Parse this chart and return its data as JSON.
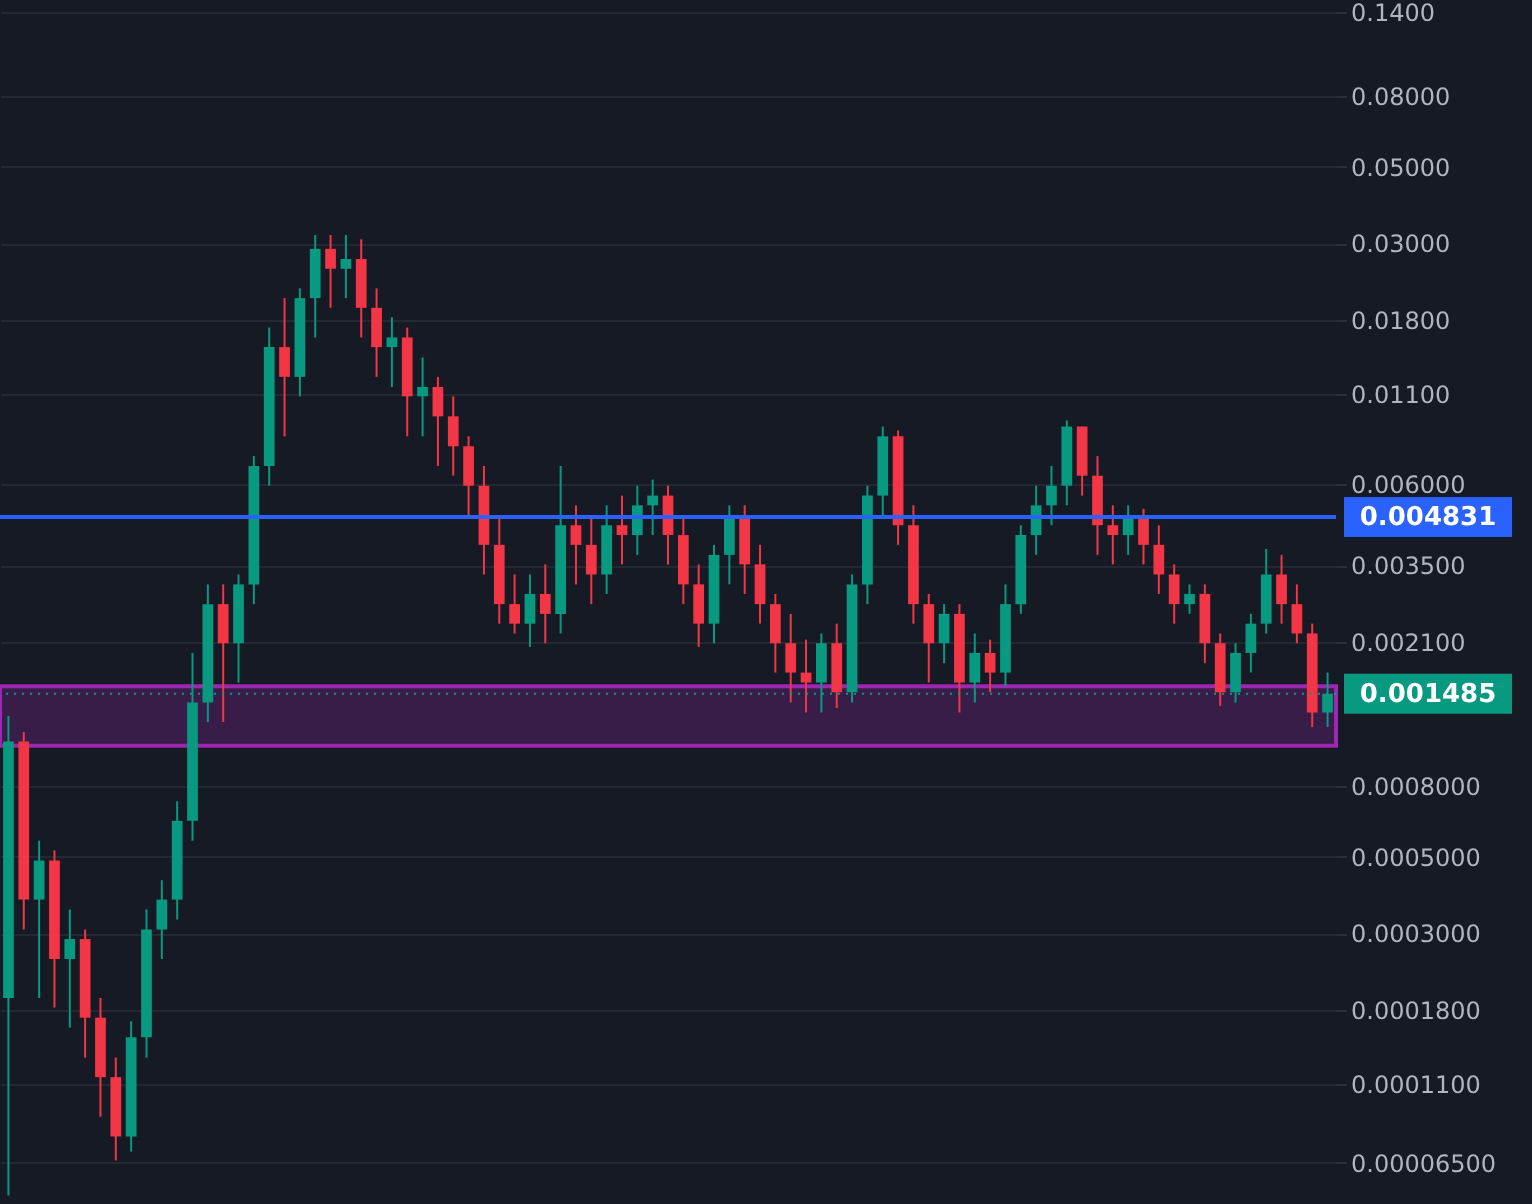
{
  "chart_data": {
    "type": "candlestick",
    "categories": [
      null,
      null,
      null,
      null,
      null,
      null,
      null,
      null,
      null,
      null,
      null,
      null,
      null,
      null,
      null,
      null,
      null,
      null,
      null,
      null,
      null,
      null,
      null,
      null,
      null,
      null,
      null,
      null,
      null,
      null,
      null,
      null,
      null,
      null,
      null,
      null,
      null,
      null,
      null,
      null,
      null,
      null,
      null,
      null,
      null,
      null,
      null,
      null,
      null,
      null,
      null,
      null,
      null,
      null,
      null,
      null,
      null,
      null,
      null,
      null,
      null,
      null,
      null,
      null,
      null,
      null,
      null,
      null,
      null,
      null,
      null,
      null,
      null,
      null,
      null,
      null,
      null,
      null,
      null,
      null,
      null,
      null,
      null,
      null,
      null,
      null,
      null
    ],
    "ohlc": [
      [
        0.000195,
        0.00128,
        5.22e-05,
        0.00108
      ],
      [
        0.00108,
        0.00115,
        0.000308,
        0.000376
      ],
      [
        0.000376,
        0.000557,
        0.000195,
        0.000488
      ],
      [
        0.000488,
        0.000522,
        0.000183,
        0.000253
      ],
      [
        0.000253,
        0.000352,
        0.00016,
        0.000289
      ],
      [
        0.000289,
        0.000308,
        0.000131,
        0.000171
      ],
      [
        0.000171,
        0.000195,
        8.83e-05,
        0.000115
      ],
      [
        0.000115,
        0.000131,
        6.6e-05,
        7.74e-05
      ],
      [
        7.74e-05,
        0.000167,
        7e-05,
        0.00015
      ],
      [
        0.00015,
        0.000352,
        0.000131,
        0.000308
      ],
      [
        0.000308,
        0.000428,
        0.000253,
        0.000376
      ],
      [
        0.000376,
        0.000725,
        0.000329,
        0.000636
      ],
      [
        0.000636,
        0.00195,
        0.000557,
        0.0014
      ],
      [
        0.0014,
        0.00308,
        0.00123,
        0.0027
      ],
      [
        0.0027,
        0.00308,
        0.00123,
        0.00208
      ],
      [
        0.00208,
        0.00329,
        0.0016,
        0.00308
      ],
      [
        0.00308,
        0.00725,
        0.0027,
        0.00679
      ],
      [
        0.00679,
        0.0171,
        0.00595,
        0.015
      ],
      [
        0.015,
        0.0208,
        0.00827,
        0.0123
      ],
      [
        0.0123,
        0.0222,
        0.0108,
        0.0208
      ],
      [
        0.0208,
        0.0317,
        0.016,
        0.0289
      ],
      [
        0.0289,
        0.0317,
        0.0195,
        0.0253
      ],
      [
        0.0253,
        0.0317,
        0.0208,
        0.027
      ],
      [
        0.027,
        0.0308,
        0.016,
        0.0195
      ],
      [
        0.0195,
        0.0222,
        0.0123,
        0.015
      ],
      [
        0.015,
        0.0183,
        0.0115,
        0.016
      ],
      [
        0.016,
        0.0171,
        0.00827,
        0.0108
      ],
      [
        0.0108,
        0.014,
        0.00827,
        0.0115
      ],
      [
        0.0115,
        0.0123,
        0.00679,
        0.00945
      ],
      [
        0.00945,
        0.0108,
        0.00636,
        0.00774
      ],
      [
        0.00774,
        0.00827,
        0.00488,
        0.00595
      ],
      [
        0.00595,
        0.00679,
        0.00329,
        0.00401
      ],
      [
        0.00401,
        0.00488,
        0.00237,
        0.0027
      ],
      [
        0.0027,
        0.00329,
        0.00222,
        0.00237
      ],
      [
        0.00237,
        0.00329,
        0.00203,
        0.00289
      ],
      [
        0.00289,
        0.00352,
        0.00208,
        0.00253
      ],
      [
        0.00253,
        0.00679,
        0.00222,
        0.00457
      ],
      [
        0.00457,
        0.00522,
        0.00308,
        0.00401
      ],
      [
        0.00401,
        0.00488,
        0.0027,
        0.00329
      ],
      [
        0.00329,
        0.00522,
        0.00289,
        0.00457
      ],
      [
        0.00457,
        0.00557,
        0.00352,
        0.00428
      ],
      [
        0.00428,
        0.00595,
        0.00375,
        0.00522
      ],
      [
        0.00522,
        0.0062,
        0.00428,
        0.00557
      ],
      [
        0.00557,
        0.00595,
        0.00352,
        0.00428
      ],
      [
        0.00428,
        0.00488,
        0.0027,
        0.00308
      ],
      [
        0.00308,
        0.00352,
        0.00203,
        0.00237
      ],
      [
        0.00237,
        0.00401,
        0.00208,
        0.00375
      ],
      [
        0.00375,
        0.00522,
        0.00308,
        0.00488
      ],
      [
        0.00488,
        0.00522,
        0.00289,
        0.00352
      ],
      [
        0.00352,
        0.00401,
        0.00237,
        0.0027
      ],
      [
        0.0027,
        0.00289,
        0.00171,
        0.00208
      ],
      [
        0.00208,
        0.00253,
        0.0014,
        0.00171
      ],
      [
        0.00171,
        0.00213,
        0.00131,
        0.0016
      ],
      [
        0.0016,
        0.00222,
        0.00131,
        0.00208
      ],
      [
        0.00208,
        0.00237,
        0.00135,
        0.0015
      ],
      [
        0.0015,
        0.00329,
        0.0014,
        0.00308
      ],
      [
        0.00308,
        0.00595,
        0.0027,
        0.00557
      ],
      [
        0.00557,
        0.00883,
        0.00488,
        0.00827
      ],
      [
        0.00827,
        0.0086,
        0.00401,
        0.00457
      ],
      [
        0.00457,
        0.00522,
        0.00237,
        0.0027
      ],
      [
        0.0027,
        0.00289,
        0.0016,
        0.00208
      ],
      [
        0.00208,
        0.0027,
        0.00182,
        0.00253
      ],
      [
        0.00253,
        0.0027,
        0.00131,
        0.0016
      ],
      [
        0.0016,
        0.00222,
        0.0014,
        0.00195
      ],
      [
        0.00195,
        0.00213,
        0.0015,
        0.00171
      ],
      [
        0.00171,
        0.00308,
        0.00156,
        0.0027
      ],
      [
        0.0027,
        0.00457,
        0.00253,
        0.00428
      ],
      [
        0.00428,
        0.00595,
        0.00375,
        0.00522
      ],
      [
        0.00522,
        0.00679,
        0.00457,
        0.00595
      ],
      [
        0.00595,
        0.0092,
        0.00522,
        0.00883
      ],
      [
        0.00883,
        0.00883,
        0.00557,
        0.00636
      ],
      [
        0.00636,
        0.00725,
        0.00375,
        0.00457
      ],
      [
        0.00457,
        0.00522,
        0.00352,
        0.00428
      ],
      [
        0.00428,
        0.00522,
        0.00375,
        0.00488
      ],
      [
        0.00488,
        0.0051,
        0.00352,
        0.00401
      ],
      [
        0.00401,
        0.00457,
        0.00289,
        0.00329
      ],
      [
        0.00329,
        0.00352,
        0.00237,
        0.0027
      ],
      [
        0.0027,
        0.00308,
        0.00253,
        0.00289
      ],
      [
        0.00289,
        0.00308,
        0.00182,
        0.00208
      ],
      [
        0.00208,
        0.00222,
        0.00137,
        0.0015
      ],
      [
        0.0015,
        0.00208,
        0.0014,
        0.00195
      ],
      [
        0.00195,
        0.00253,
        0.00171,
        0.00237
      ],
      [
        0.00237,
        0.0039,
        0.00222,
        0.00329
      ],
      [
        0.00329,
        0.00375,
        0.00237,
        0.0027
      ],
      [
        0.0027,
        0.00308,
        0.00208,
        0.00222
      ],
      [
        0.00222,
        0.00237,
        0.00119,
        0.00131
      ],
      [
        0.00131,
        0.00171,
        0.00119,
        0.001485
      ]
    ],
    "colors": [
      "#089981",
      "#f23645",
      "#089981",
      "#f23645",
      "#089981",
      "#f23645",
      "#f23645",
      "#f23645",
      "#089981",
      "#089981",
      "#089981",
      "#089981",
      "#089981",
      "#089981",
      "#f23645",
      "#089981",
      "#089981",
      "#089981",
      "#f23645",
      "#089981",
      "#089981",
      "#f23645",
      "#089981",
      "#f23645",
      "#f23645",
      "#089981",
      "#f23645",
      "#089981",
      "#f23645",
      "#f23645",
      "#f23645",
      "#f23645",
      "#f23645",
      "#f23645",
      "#089981",
      "#f23645",
      "#089981",
      "#f23645",
      "#f23645",
      "#089981",
      "#f23645",
      "#089981",
      "#089981",
      "#f23645",
      "#f23645",
      "#f23645",
      "#089981",
      "#089981",
      "#f23645",
      "#f23645",
      "#f23645",
      "#f23645",
      "#f23645",
      "#089981",
      "#f23645",
      "#089981",
      "#089981",
      "#089981",
      "#f23645",
      "#f23645",
      "#f23645",
      "#089981",
      "#f23645",
      "#089981",
      "#f23645",
      "#089981",
      "#089981",
      "#089981",
      "#089981",
      "#089981",
      "#f23645",
      "#f23645",
      "#f23645",
      "#089981",
      "#f23645",
      "#f23645",
      "#f23645",
      "#089981",
      "#f23645",
      "#f23645",
      "#089981",
      "#089981",
      "#089981",
      "#f23645",
      "#f23645",
      "#f23645",
      "#089981"
    ],
    "log": "y",
    "ylim": [
      5e-05,
      0.15
    ],
    "yticks": [
      {
        "value": 0.14,
        "label": "0.1400"
      },
      {
        "value": 0.08,
        "label": "0.08000"
      },
      {
        "value": 0.05,
        "label": "0.05000"
      },
      {
        "value": 0.03,
        "label": "0.03000"
      },
      {
        "value": 0.018,
        "label": "0.01800"
      },
      {
        "value": 0.011,
        "label": "0.01100"
      },
      {
        "value": 0.006,
        "label": "0.006000"
      },
      {
        "value": 0.0035,
        "label": "0.003500"
      },
      {
        "value": 0.0021,
        "label": "0.002100"
      },
      {
        "value": 0.0008,
        "label": "0.0008000"
      },
      {
        "value": 0.0005,
        "label": "0.0005000"
      },
      {
        "value": 0.0003,
        "label": "0.0003000"
      },
      {
        "value": 0.00018,
        "label": "0.0001800"
      },
      {
        "value": 0.00011,
        "label": "0.0001100"
      },
      {
        "value": 6.5e-05,
        "label": "0.00006500"
      }
    ],
    "grid": "y",
    "tick_labels": "y",
    "ref_lines": [
      {
        "axis": "y",
        "value": 0.004831,
        "label": "0.004831",
        "color": "#2962ff",
        "line_style": "solid"
      },
      {
        "axis": "y",
        "value": 0.001485,
        "label": "0.001485",
        "color": "#089981",
        "line_style": "dotted"
      }
    ],
    "bands": [
      {
        "axis": "y",
        "from": 0.00105,
        "to": 0.00156,
        "color": "#9c27b0"
      }
    ]
  }
}
